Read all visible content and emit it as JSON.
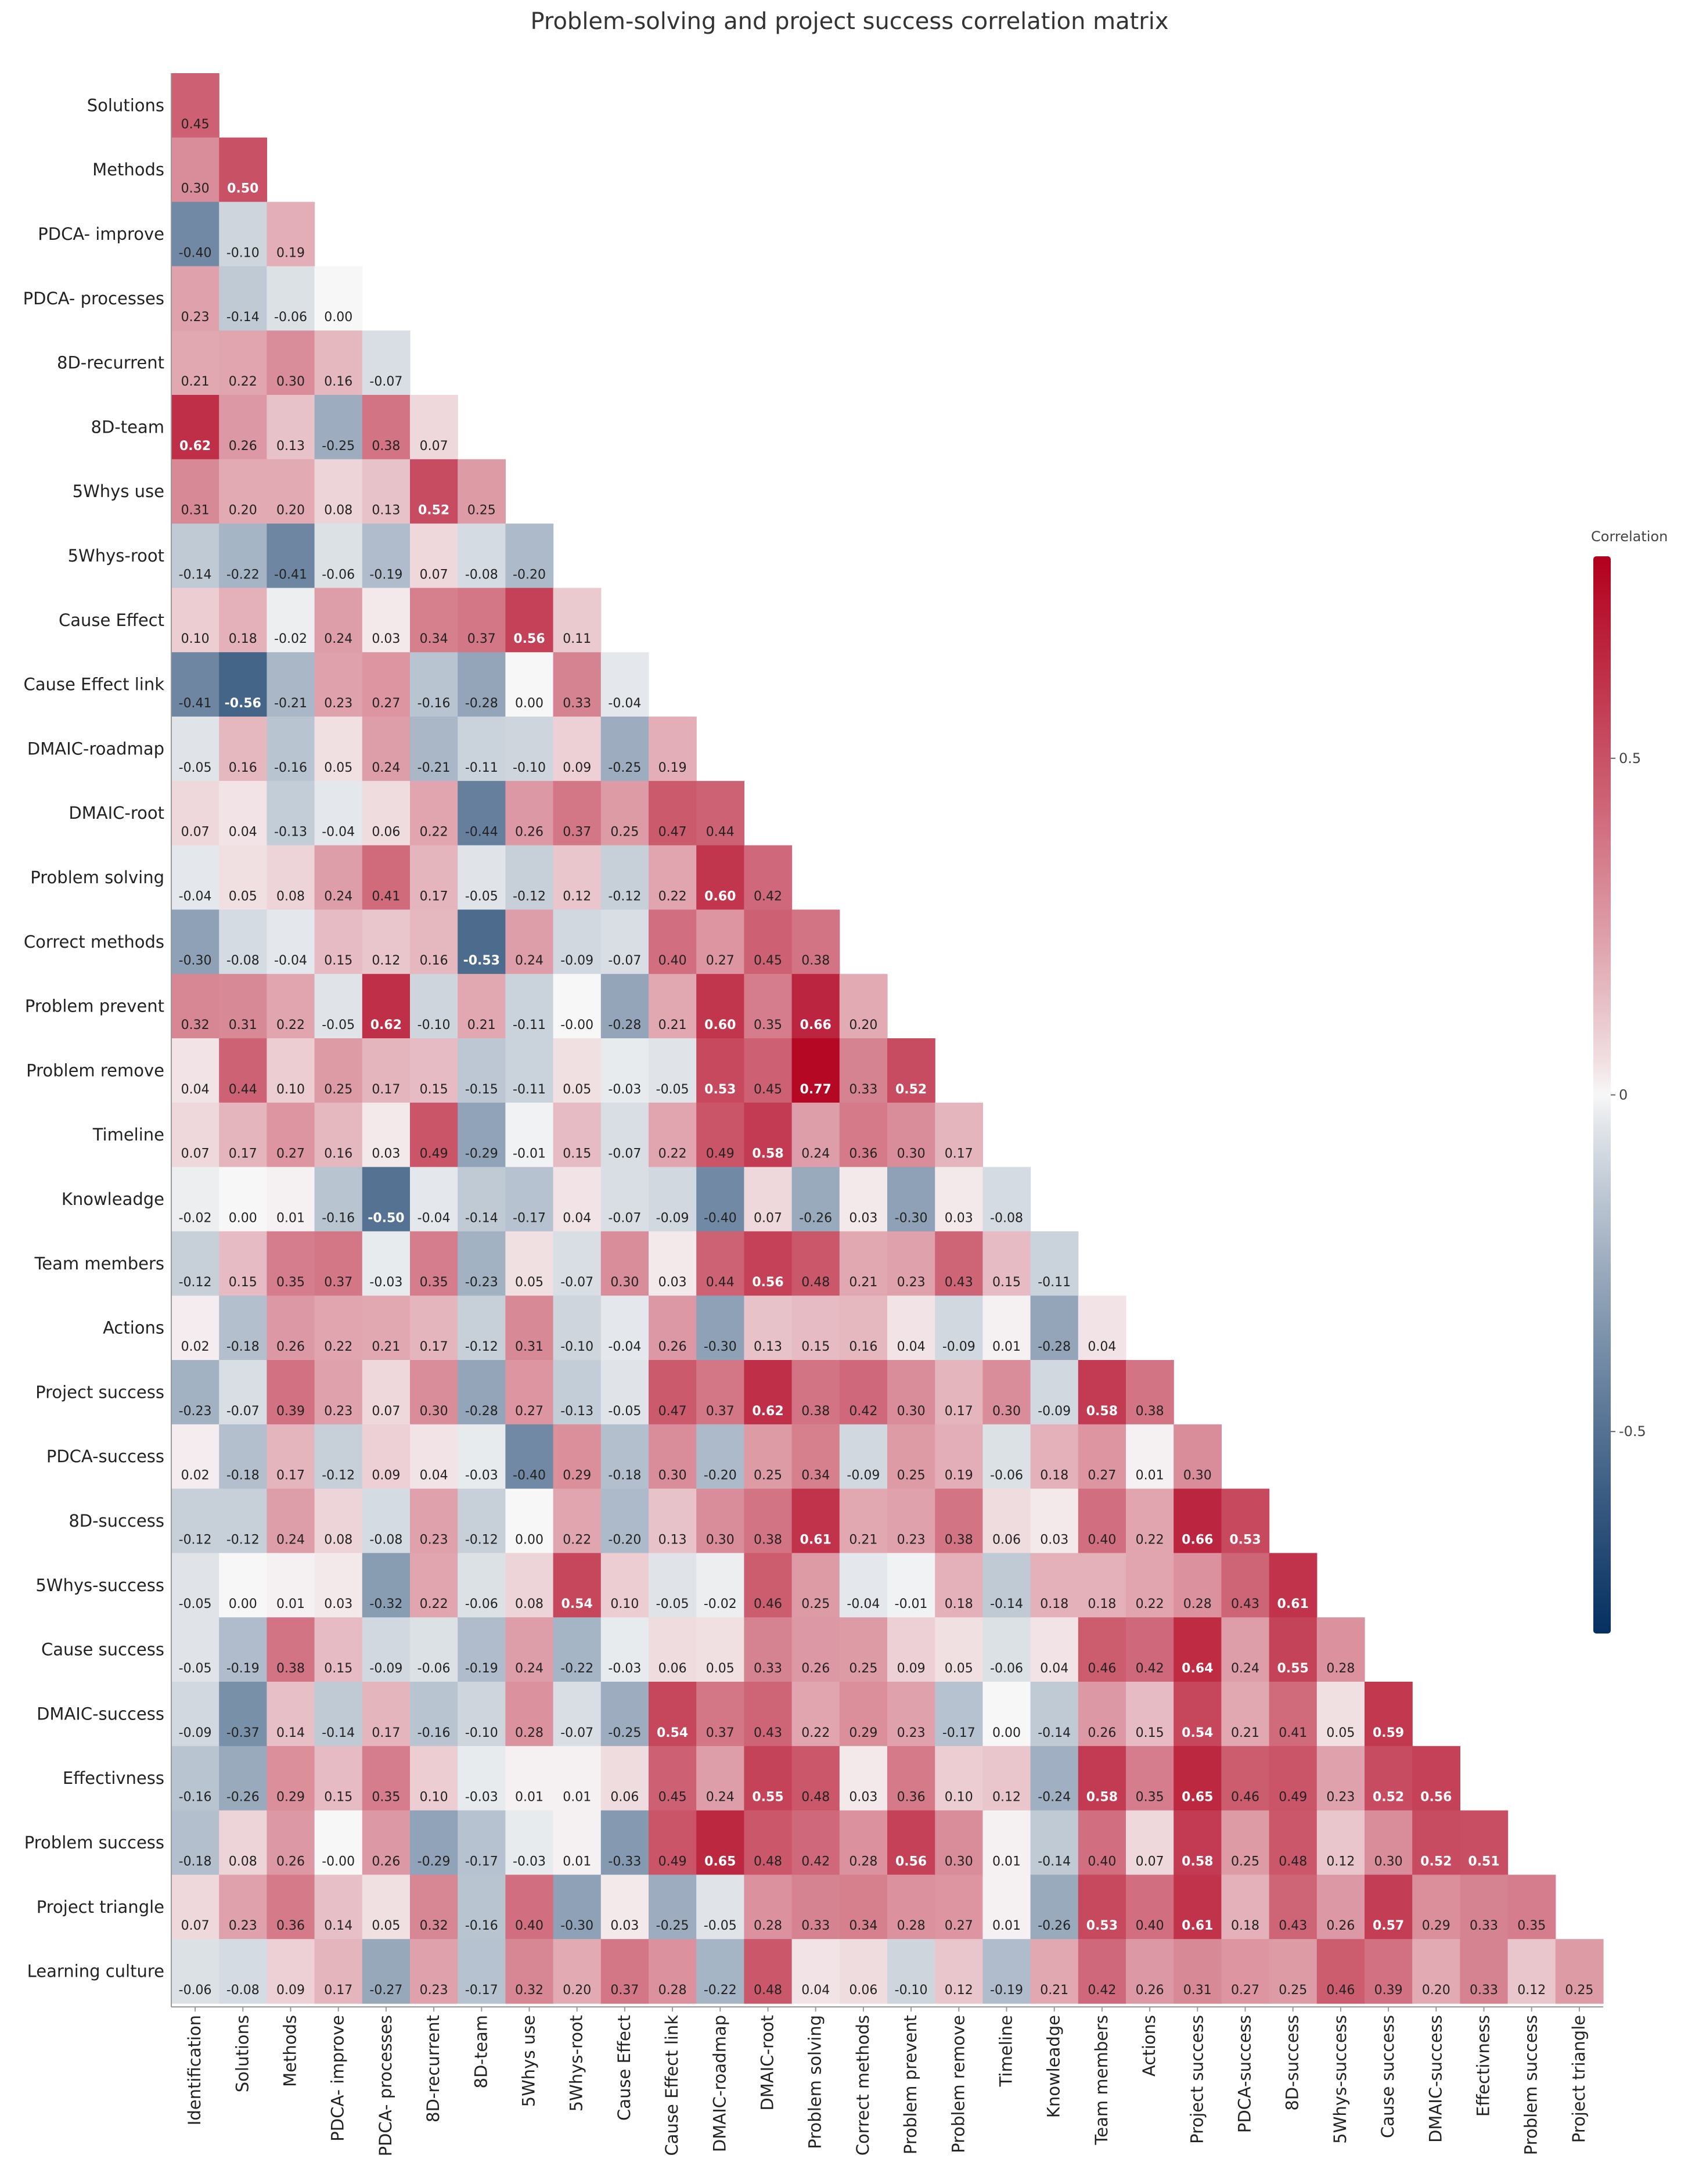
{
  "chart_data": {
    "type": "heatmap",
    "title": "Problem-solving and project success correlation matrix",
    "colorbar": {
      "title": "Correlation",
      "range": [
        -0.8,
        0.8
      ],
      "ticks": [
        0.5,
        0,
        -0.5
      ],
      "tick_labels": [
        "0.5",
        "0",
        "-0.5"
      ],
      "colors": {
        "negative": "#053061",
        "neutral": "#f7f7f7",
        "positive": "#b2001e"
      }
    },
    "row_labels": [
      "Solutions",
      "Methods",
      "PDCA- improve",
      "PDCA- processes",
      "8D-recurrent",
      "8D-team",
      "5Whys use",
      "5Whys-root",
      "Cause Effect",
      "Cause Effect link",
      "DMAIC-roadmap",
      "DMAIC-root",
      "Problem solving",
      "Correct methods",
      "Problem prevent",
      "Problem remove",
      "Timeline",
      "Knowleadge",
      "Team members",
      "Actions",
      "Project success",
      "PDCA-success",
      "8D-success",
      "5Whys-success",
      "Cause success",
      "DMAIC-success",
      "Effectivness",
      "Problem success",
      "Project triangle",
      "Learning culture"
    ],
    "col_labels": [
      "Identification",
      "Solutions",
      "Methods",
      "PDCA- improve",
      "PDCA- processes",
      "8D-recurrent",
      "8D-team",
      "5Whys use",
      "5Whys-root",
      "Cause Effect",
      "Cause Effect link",
      "DMAIC-roadmap",
      "DMAIC-root",
      "Problem solving",
      "Correct methods",
      "Problem prevent",
      "Problem remove",
      "Timeline",
      "Knowleadge",
      "Team members",
      "Actions",
      "Project success",
      "PDCA-success",
      "8D-success",
      "5Whys-success",
      "Cause success",
      "DMAIC-success",
      "Effectivness",
      "Problem success",
      "Project triangle"
    ],
    "cell_labels": [
      [
        "0.45"
      ],
      [
        "0.30",
        "0.50"
      ],
      [
        "-0.40",
        "-0.10",
        "0.19"
      ],
      [
        "0.23",
        "-0.14",
        "-0.06",
        "0.00"
      ],
      [
        "0.21",
        "0.22",
        "0.30",
        "0.16",
        "-0.07"
      ],
      [
        "0.62",
        "0.26",
        "0.13",
        "-0.25",
        "0.38",
        "0.07"
      ],
      [
        "0.31",
        "0.20",
        "0.20",
        "0.08",
        "0.13",
        "0.52",
        "0.25"
      ],
      [
        "-0.14",
        "-0.22",
        "-0.41",
        "-0.06",
        "-0.19",
        "0.07",
        "-0.08",
        "-0.20"
      ],
      [
        "0.10",
        "0.18",
        "-0.02",
        "0.24",
        "0.03",
        "0.34",
        "0.37",
        "0.56",
        "0.11"
      ],
      [
        "-0.41",
        "-0.56",
        "-0.21",
        "0.23",
        "0.27",
        "-0.16",
        "-0.28",
        "0.00",
        "0.33",
        "-0.04"
      ],
      [
        "-0.05",
        "0.16",
        "-0.16",
        "0.05",
        "0.24",
        "-0.21",
        "-0.11",
        "-0.10",
        "0.09",
        "-0.25",
        "0.19"
      ],
      [
        "0.07",
        "0.04",
        "-0.13",
        "-0.04",
        "0.06",
        "0.22",
        "-0.44",
        "0.26",
        "0.37",
        "0.25",
        "0.47",
        "0.44"
      ],
      [
        "-0.04",
        "0.05",
        "0.08",
        "0.24",
        "0.41",
        "0.17",
        "-0.05",
        "-0.12",
        "0.12",
        "-0.12",
        "0.22",
        "0.60",
        "0.42"
      ],
      [
        "-0.30",
        "-0.08",
        "-0.04",
        "0.15",
        "0.12",
        "0.16",
        "-0.53",
        "0.24",
        "-0.09",
        "-0.07",
        "0.40",
        "0.27",
        "0.45",
        "0.38"
      ],
      [
        "0.32",
        "0.31",
        "0.22",
        "-0.05",
        "0.62",
        "-0.10",
        "0.21",
        "-0.11",
        "-0.00",
        "-0.28",
        "0.21",
        "0.60",
        "0.35",
        "0.66",
        "0.20"
      ],
      [
        "0.04",
        "0.44",
        "0.10",
        "0.25",
        "0.17",
        "0.15",
        "-0.15",
        "-0.11",
        "0.05",
        "-0.03",
        "-0.05",
        "0.53",
        "0.45",
        "0.77",
        "0.33",
        "0.52"
      ],
      [
        "0.07",
        "0.17",
        "0.27",
        "0.16",
        "0.03",
        "0.49",
        "-0.29",
        "-0.01",
        "0.15",
        "-0.07",
        "0.22",
        "0.49",
        "0.58",
        "0.24",
        "0.36",
        "0.30",
        "0.17"
      ],
      [
        "-0.02",
        "0.00",
        "0.01",
        "-0.16",
        "-0.50",
        "-0.04",
        "-0.14",
        "-0.17",
        "0.04",
        "-0.07",
        "-0.09",
        "-0.40",
        "0.07",
        "-0.26",
        "0.03",
        "-0.30",
        "0.03",
        "-0.08"
      ],
      [
        "-0.12",
        "0.15",
        "0.35",
        "0.37",
        "-0.03",
        "0.35",
        "-0.23",
        "0.05",
        "-0.07",
        "0.30",
        "0.03",
        "0.44",
        "0.56",
        "0.48",
        "0.21",
        "0.23",
        "0.43",
        "0.15",
        "-0.11"
      ],
      [
        "0.02",
        "-0.18",
        "0.26",
        "0.22",
        "0.21",
        "0.17",
        "-0.12",
        "0.31",
        "-0.10",
        "-0.04",
        "0.26",
        "-0.30",
        "0.13",
        "0.15",
        "0.16",
        "0.04",
        "-0.09",
        "0.01",
        "-0.28",
        "0.04"
      ],
      [
        "-0.23",
        "-0.07",
        "0.39",
        "0.23",
        "0.07",
        "0.30",
        "-0.28",
        "0.27",
        "-0.13",
        "-0.05",
        "0.47",
        "0.37",
        "0.62",
        "0.38",
        "0.42",
        "0.30",
        "0.17",
        "0.30",
        "-0.09",
        "0.58",
        "0.38"
      ],
      [
        "0.02",
        "-0.18",
        "0.17",
        "-0.12",
        "0.09",
        "0.04",
        "-0.03",
        "-0.40",
        "0.29",
        "-0.18",
        "0.30",
        "-0.20",
        "0.25",
        "0.34",
        "-0.09",
        "0.25",
        "0.19",
        "-0.06",
        "0.18",
        "0.27",
        "0.01",
        "0.30"
      ],
      [
        "-0.12",
        "-0.12",
        "0.24",
        "0.08",
        "-0.08",
        "0.23",
        "-0.12",
        "0.00",
        "0.22",
        "-0.20",
        "0.13",
        "0.30",
        "0.38",
        "0.61",
        "0.21",
        "0.23",
        "0.38",
        "0.06",
        "0.03",
        "0.40",
        "0.22",
        "0.66",
        "0.53"
      ],
      [
        "-0.05",
        "0.00",
        "0.01",
        "0.03",
        "-0.32",
        "0.22",
        "-0.06",
        "0.08",
        "0.54",
        "0.10",
        "-0.05",
        "-0.02",
        "0.46",
        "0.25",
        "-0.04",
        "-0.01",
        "0.18",
        "-0.14",
        "0.18",
        "0.18",
        "0.22",
        "0.28",
        "0.43",
        "0.61"
      ],
      [
        "-0.05",
        "-0.19",
        "0.38",
        "0.15",
        "-0.09",
        "-0.06",
        "-0.19",
        "0.24",
        "-0.22",
        "-0.03",
        "0.06",
        "0.05",
        "0.33",
        "0.26",
        "0.25",
        "0.09",
        "0.05",
        "-0.06",
        "0.04",
        "0.46",
        "0.42",
        "0.64",
        "0.24",
        "0.55",
        "0.28"
      ],
      [
        "-0.09",
        "-0.37",
        "0.14",
        "-0.14",
        "0.17",
        "-0.16",
        "-0.10",
        "0.28",
        "-0.07",
        "-0.25",
        "0.54",
        "0.37",
        "0.43",
        "0.22",
        "0.29",
        "0.23",
        "-0.17",
        "0.00",
        "-0.14",
        "0.26",
        "0.15",
        "0.54",
        "0.21",
        "0.41",
        "0.05",
        "0.59"
      ],
      [
        "-0.16",
        "-0.26",
        "0.29",
        "0.15",
        "0.35",
        "0.10",
        "-0.03",
        "0.01",
        "0.01",
        "0.06",
        "0.45",
        "0.24",
        "0.55",
        "0.48",
        "0.03",
        "0.36",
        "0.10",
        "0.12",
        "-0.24",
        "0.58",
        "0.35",
        "0.65",
        "0.46",
        "0.49",
        "0.23",
        "0.52",
        "0.56"
      ],
      [
        "-0.18",
        "0.08",
        "0.26",
        "-0.00",
        "0.26",
        "-0.29",
        "-0.17",
        "-0.03",
        "0.01",
        "-0.33",
        "0.49",
        "0.65",
        "0.48",
        "0.42",
        "0.28",
        "0.56",
        "0.30",
        "0.01",
        "-0.14",
        "0.40",
        "0.07",
        "0.58",
        "0.25",
        "0.48",
        "0.12",
        "0.30",
        "0.52",
        "0.51"
      ],
      [
        "0.07",
        "0.23",
        "0.36",
        "0.14",
        "0.05",
        "0.32",
        "-0.16",
        "0.40",
        "-0.30",
        "0.03",
        "-0.25",
        "-0.05",
        "0.28",
        "0.33",
        "0.34",
        "0.28",
        "0.27",
        "0.01",
        "-0.26",
        "0.53",
        "0.40",
        "0.61",
        "0.18",
        "0.43",
        "0.26",
        "0.57",
        "0.29",
        "0.33",
        "0.35"
      ],
      [
        "-0.06",
        "-0.08",
        "0.09",
        "0.17",
        "-0.27",
        "0.23",
        "-0.17",
        "0.32",
        "0.20",
        "0.37",
        "0.28",
        "-0.22",
        "0.48",
        "0.04",
        "0.06",
        "-0.10",
        "0.12",
        "-0.19",
        "0.21",
        "0.42",
        "0.26",
        "0.31",
        "0.27",
        "0.25",
        "0.46",
        "0.39",
        "0.20",
        "0.33",
        "0.12",
        "0.25"
      ]
    ]
  }
}
